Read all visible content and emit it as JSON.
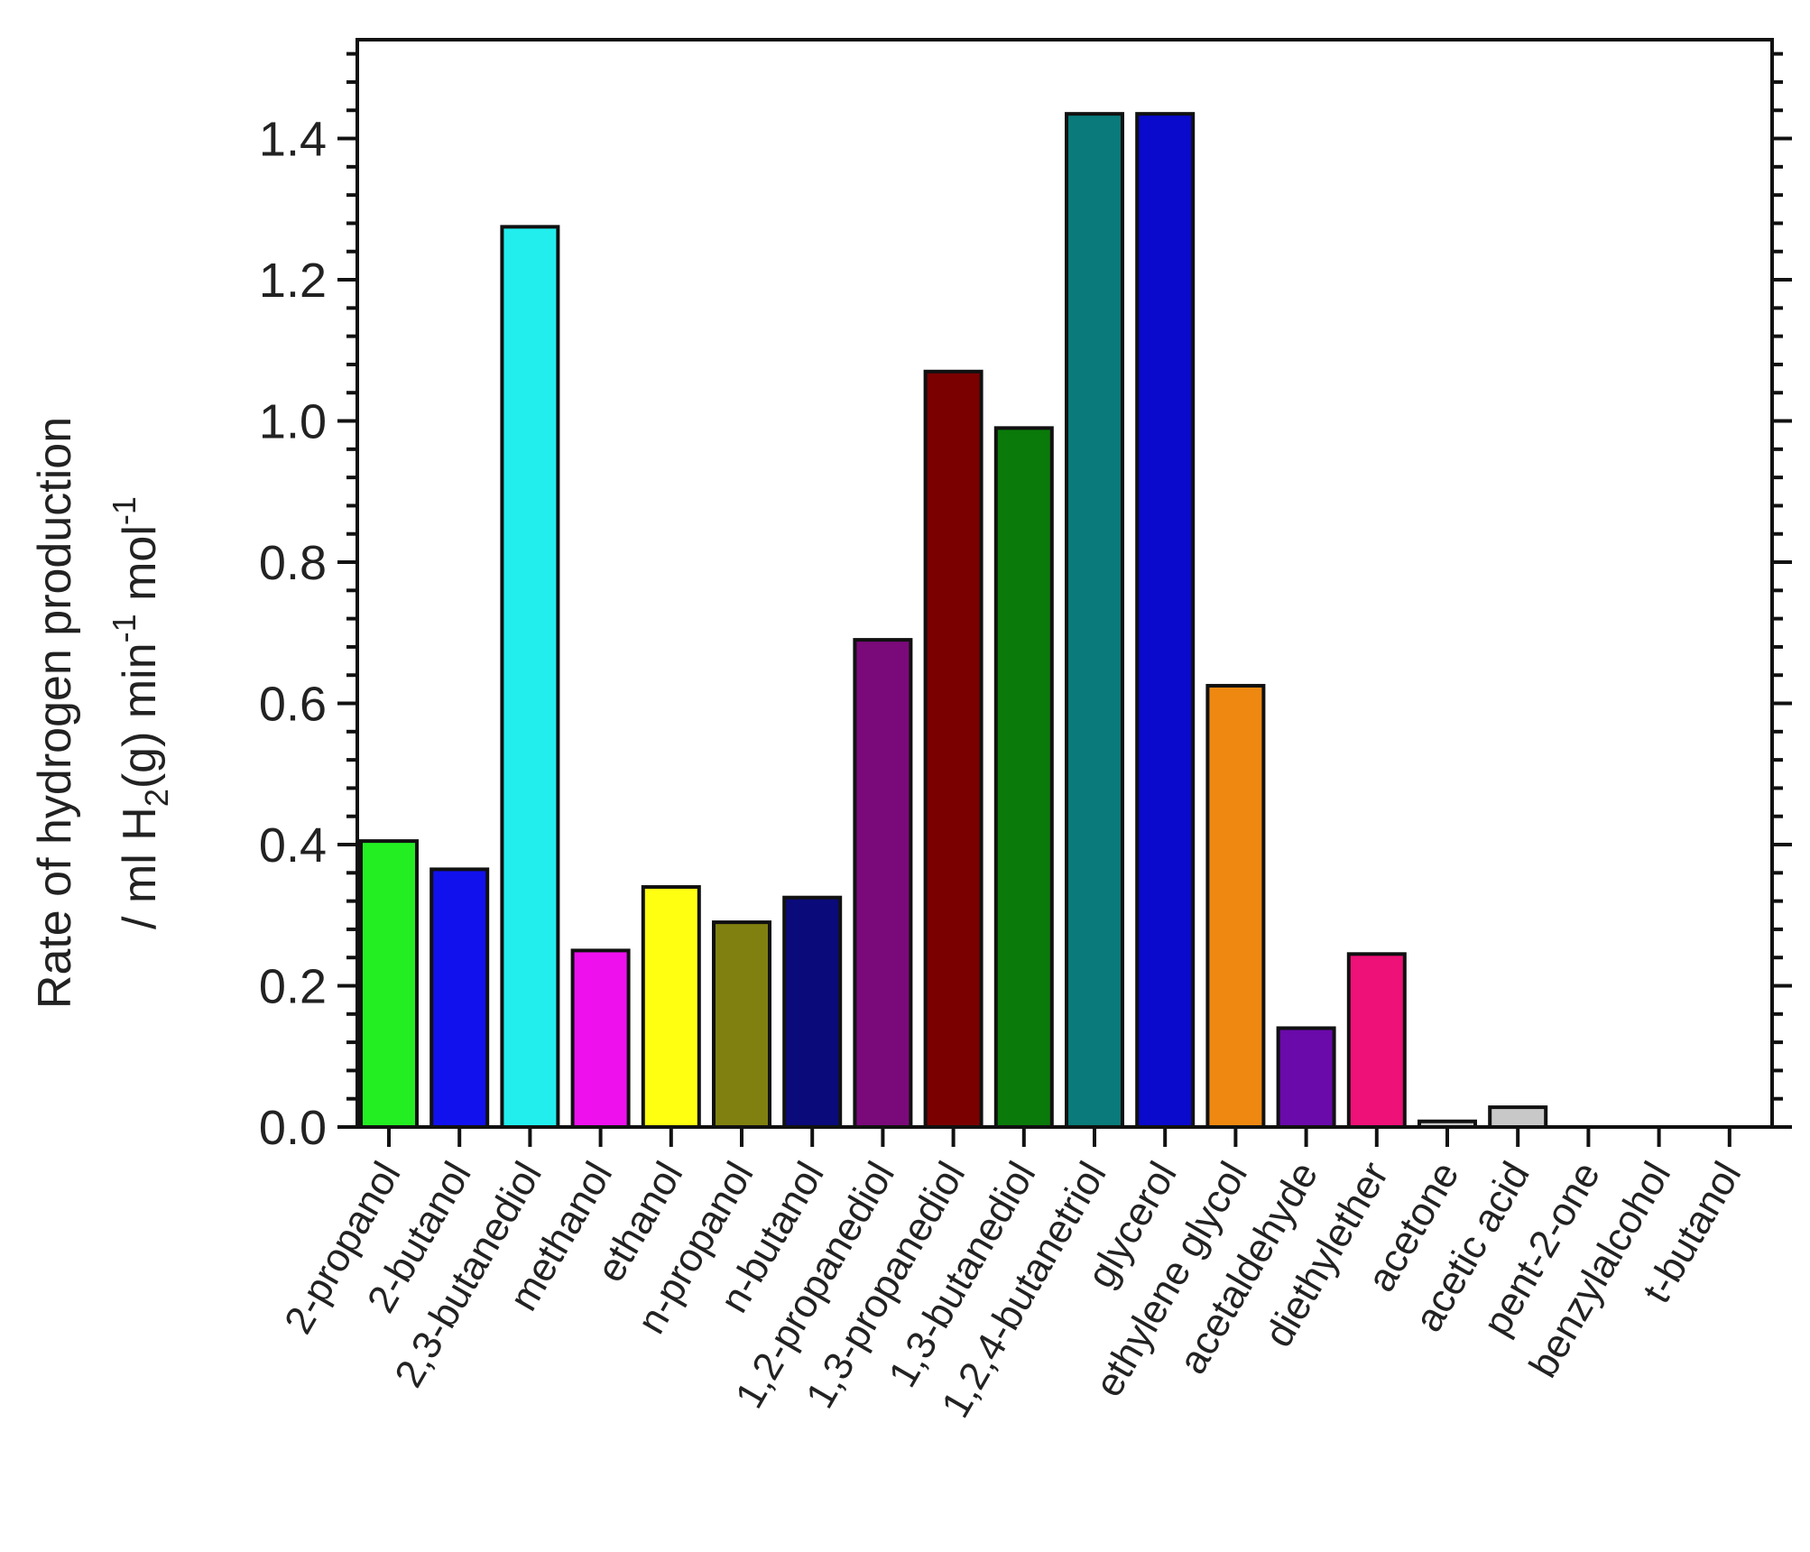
{
  "chart_data": {
    "type": "bar",
    "title": "",
    "xlabel": "",
    "ylabel_line1": "Rate of hydrogen production",
    "ylabel_line2": {
      "prefix": "/ ml H",
      "sub": "2",
      "mid1": "(g) min",
      "sup1": "-1",
      "mid2": " mol",
      "sup2": "-1"
    },
    "ylim": [
      0,
      1.54
    ],
    "yticks": [
      0.0,
      0.2,
      0.4,
      0.6,
      0.8,
      1.0,
      1.2,
      1.4
    ],
    "ytick_labels": [
      "0.0",
      "0.2",
      "0.4",
      "0.6",
      "0.8",
      "1.0",
      "1.2",
      "1.4"
    ],
    "grid": false,
    "legend": "none",
    "categories": [
      "2-propanol",
      "2-butanol",
      "2,3-butanediol",
      "methanol",
      "ethanol",
      "n-propanol",
      "n-butanol",
      "1,2-propanediol",
      "1,3-propanediol",
      "1,3-butanediol",
      "1,2,4-butanetriol",
      "glycerol",
      "ethylene glycol",
      "acetaldehyde",
      "diethylether",
      "acetone",
      "acetic acid",
      "pent-2-one",
      "benzylalcohol",
      "t-butanol"
    ],
    "values": [
      0.405,
      0.365,
      1.275,
      0.25,
      0.34,
      0.29,
      0.325,
      0.69,
      1.07,
      0.99,
      1.435,
      1.435,
      0.625,
      0.14,
      0.245,
      0.008,
      0.028,
      0.0,
      0.0,
      0.0
    ],
    "colors": [
      "#22ee22",
      "#1111ee",
      "#22eeee",
      "#ee11ee",
      "#ffff11",
      "#808010",
      "#0a0a7a",
      "#7a0a7a",
      "#7a0000",
      "#0a7a0a",
      "#0a7a7a",
      "#0a0acc",
      "#ee8811",
      "#6a0aaa",
      "#ee1177",
      "#c8c8c8",
      "#c8c8c8",
      "#c8c8c8",
      "#c8c8c8",
      "#c8c8c8"
    ]
  }
}
